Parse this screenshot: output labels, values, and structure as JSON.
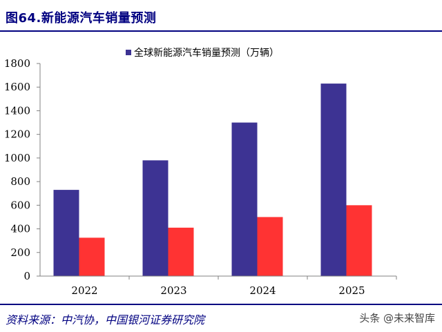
{
  "title": "图64.新能源汽车销量预测",
  "source": "资料来源：中汽协，中国银河证券研究院",
  "watermark": "头条 @未来智库",
  "colors": {
    "series_1": "#3d3393",
    "series_2": "#ff3333",
    "accent": "#000080"
  },
  "chart_data": {
    "type": "bar",
    "categories": [
      "2022",
      "2023",
      "2024",
      "2025"
    ],
    "series": [
      {
        "name": "全球新能源汽车销量预测（万辆）",
        "values": [
          730,
          980,
          1300,
          1630
        ]
      },
      {
        "name": "",
        "values": [
          325,
          410,
          500,
          600
        ]
      }
    ],
    "ylim": [
      0,
      1800
    ],
    "yticks": [
      0,
      200,
      400,
      600,
      800,
      1000,
      1200,
      1400,
      1600,
      1800
    ],
    "legend_position": "top-center",
    "grid": false
  }
}
